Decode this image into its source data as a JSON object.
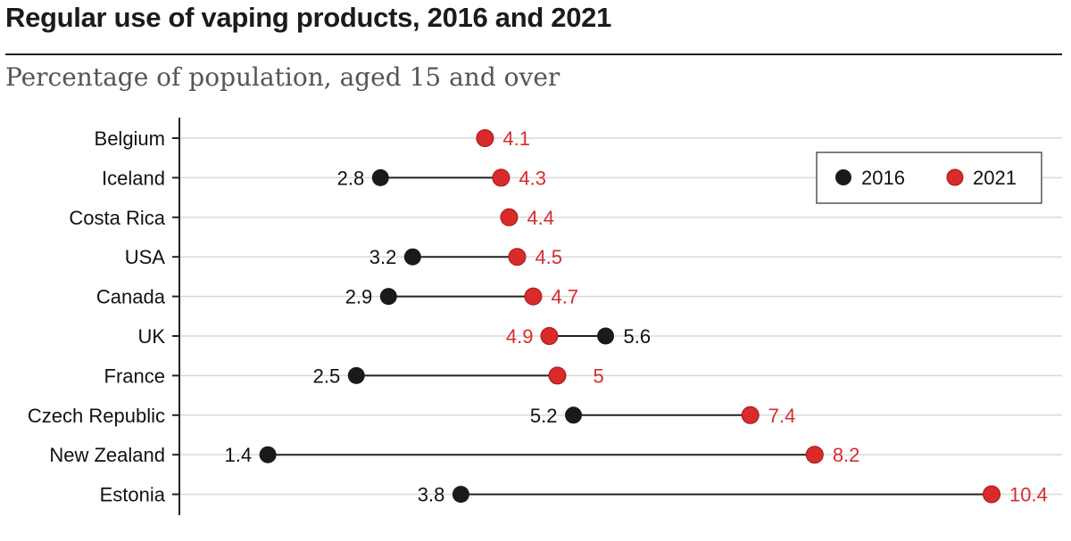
{
  "chart_data": {
    "type": "dumbbell",
    "title": "Regular use of vaping products, 2016 and 2021",
    "subtitle": "Percentage of population, aged 15 and over",
    "xlim": [
      0,
      11.2
    ],
    "series": [
      {
        "name": "2016",
        "color": "#1a1a1a"
      },
      {
        "name": "2021",
        "color": "#d92b2b"
      }
    ],
    "rows": [
      {
        "country": "Belgium",
        "v2016": null,
        "v2021": 4.1
      },
      {
        "country": "Iceland",
        "v2016": 2.8,
        "v2021": 4.3
      },
      {
        "country": "Costa Rica",
        "v2016": null,
        "v2021": 4.4
      },
      {
        "country": "USA",
        "v2016": 3.2,
        "v2021": 4.5
      },
      {
        "country": "Canada",
        "v2016": 2.9,
        "v2021": 4.7
      },
      {
        "country": "UK",
        "v2016": 5.6,
        "v2021": 4.9
      },
      {
        "country": "France",
        "v2016": 2.5,
        "v2021": 5
      },
      {
        "country": "Czech Republic",
        "v2016": 5.2,
        "v2021": 7.4
      },
      {
        "country": "New Zealand",
        "v2016": 1.4,
        "v2021": 8.2
      },
      {
        "country": "Estonia",
        "v2016": 3.8,
        "v2021": 10.4
      }
    ],
    "legend": {
      "position": "top-right",
      "labels": [
        "2016",
        "2021"
      ]
    }
  }
}
